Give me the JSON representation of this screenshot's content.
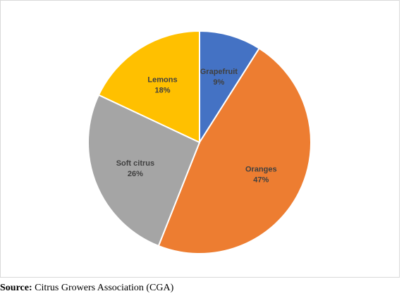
{
  "chart_data": {
    "type": "pie",
    "title": "",
    "start_angle_deg": 0,
    "direction": "clockwise",
    "slices": [
      {
        "label": "Grapefruit",
        "value": 9,
        "value_label": "9%",
        "color": "#4472C4"
      },
      {
        "label": "Oranges",
        "value": 47,
        "value_label": "47%",
        "color": "#ED7D31"
      },
      {
        "label": "Soft citrus",
        "value": 26,
        "value_label": "26%",
        "color": "#A5A5A5"
      },
      {
        "label": "Lemons",
        "value": 18,
        "value_label": "18%",
        "color": "#FFC000"
      }
    ],
    "legend": "none",
    "slice_border_color": "#ffffff",
    "label_color": "#404040"
  },
  "source": {
    "prefix": "Source:",
    "text": " Citrus Growers Association (CGA)"
  }
}
